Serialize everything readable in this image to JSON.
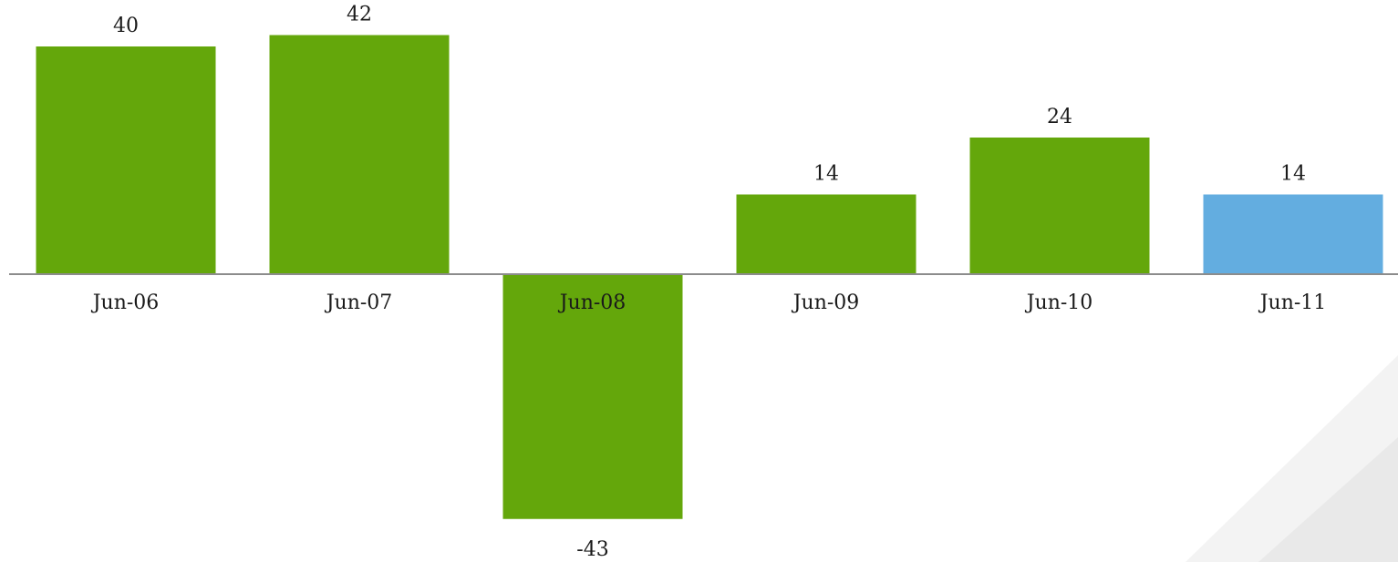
{
  "chart_data": {
    "type": "bar",
    "categories": [
      "Jun-06",
      "Jun-07",
      "Jun-08",
      "Jun-09",
      "Jun-10",
      "Jun-11"
    ],
    "values": [
      40,
      42,
      -43,
      14,
      24,
      14
    ],
    "data_labels": [
      "40",
      "42",
      "-43",
      "14",
      "24",
      "14"
    ],
    "title": "",
    "xlabel": "",
    "ylabel": "",
    "ylim": [
      -43,
      42
    ],
    "grid": false,
    "legend": "none",
    "colors": {
      "default": "#64A70B",
      "highlight": "#63ADE0",
      "axis": "#8C8C8C",
      "decor_light": "#F3F3F3",
      "decor_mid": "#E9E9E9"
    },
    "bar_colors": [
      "#64A70B",
      "#64A70B",
      "#64A70B",
      "#64A70B",
      "#64A70B",
      "#63ADE0"
    ]
  }
}
